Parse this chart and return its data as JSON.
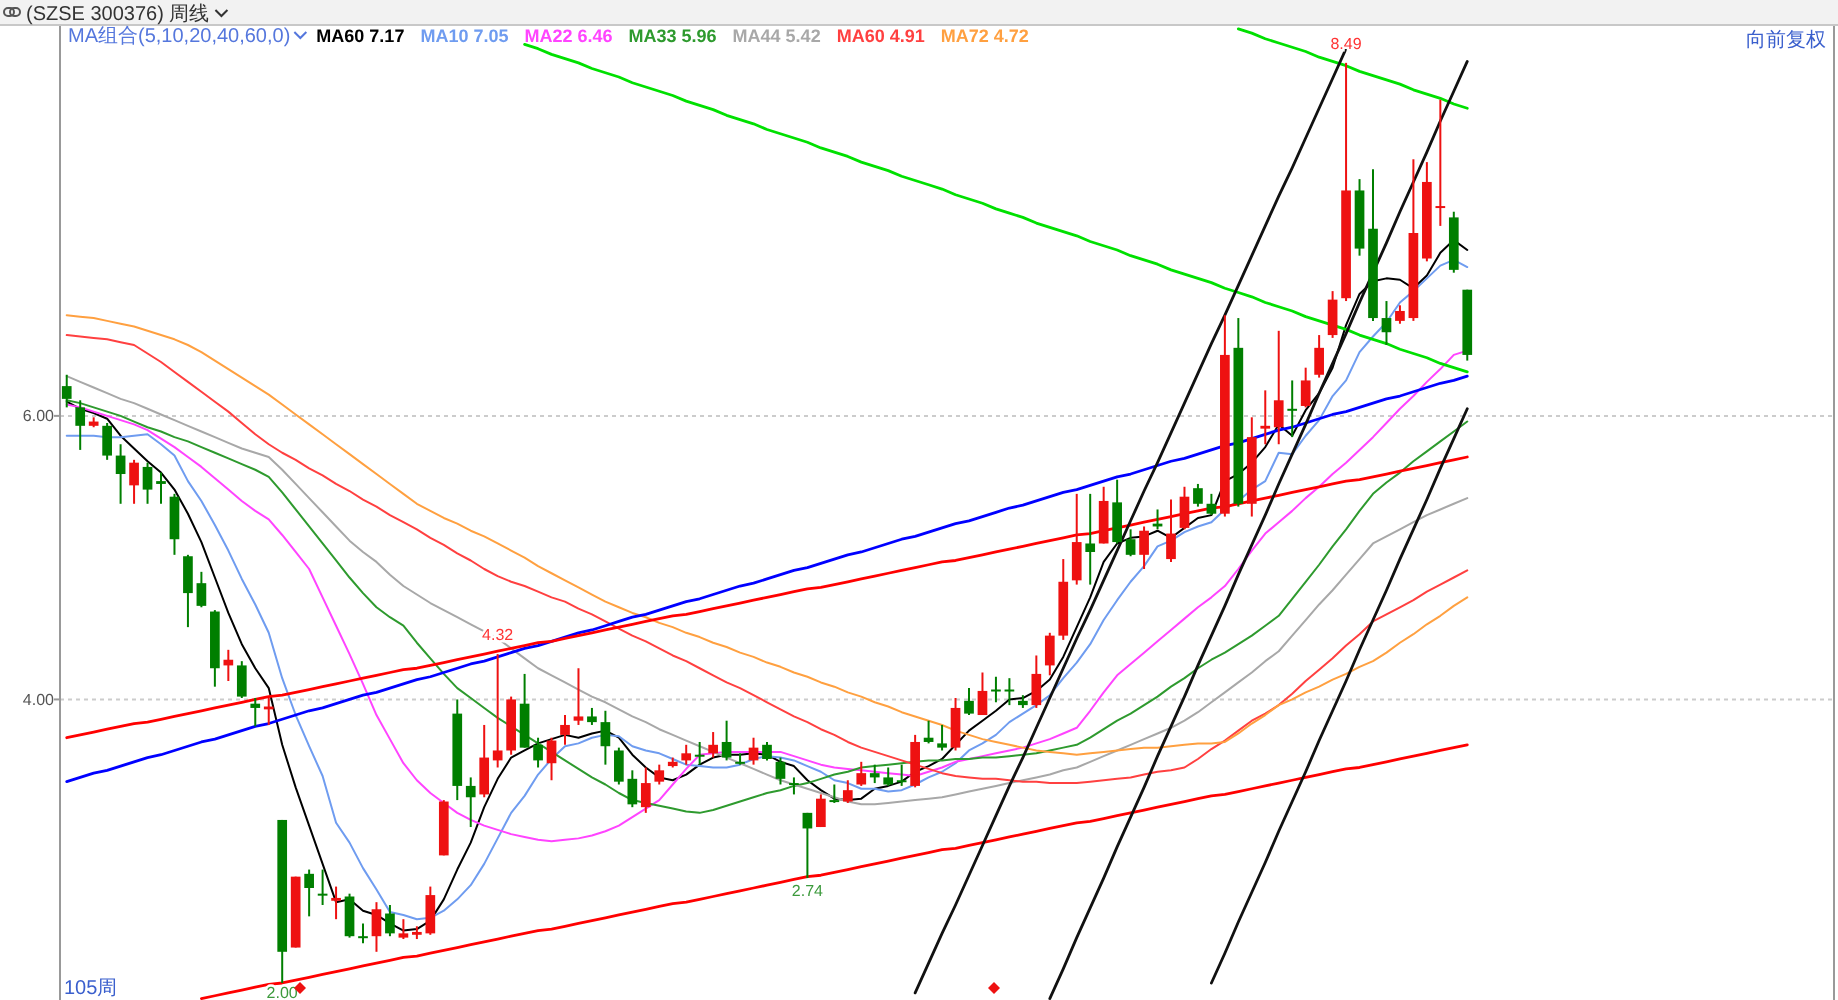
{
  "chart_data": {
    "type": "candlestick",
    "title": "(SZSE 300376) 周线",
    "legend_title": "MA组合(5,10,20,40,60,0)",
    "legend": "top left",
    "grid": "y",
    "tick_labels": "y",
    "ylim": [
      1.88,
      8.75
    ],
    "yticks": [
      {
        "value": 4,
        "label": "4.00"
      },
      {
        "value": 6,
        "label": "6.00"
      }
    ],
    "categories": [
      null,
      null,
      null,
      null,
      null,
      null,
      null,
      null,
      null,
      null,
      null,
      null,
      null,
      null,
      null,
      null,
      null,
      null,
      null,
      null,
      null,
      null,
      null,
      null,
      null,
      null,
      null,
      null,
      null,
      null,
      null,
      null,
      null,
      null,
      null,
      null,
      null,
      null,
      null,
      null,
      null,
      null,
      null,
      null,
      null,
      null,
      null,
      null,
      null,
      null,
      null,
      null,
      null,
      null,
      null,
      null,
      null,
      null,
      null,
      null,
      null,
      null,
      null,
      null,
      null,
      null,
      null,
      null,
      null,
      null,
      null,
      null,
      null,
      null,
      null,
      null,
      null,
      null,
      null,
      null,
      null,
      null,
      null,
      null,
      null,
      null,
      null,
      null,
      null,
      null,
      null,
      null,
      null,
      null,
      null,
      null,
      null,
      null,
      null,
      null,
      null,
      null,
      null,
      null,
      null
    ],
    "ohlc": [
      [
        6.21,
        6.29,
        6.06,
        6.12
      ],
      [
        6.06,
        6.11,
        5.76,
        5.93
      ],
      [
        5.93,
        5.99,
        5.92,
        5.96
      ],
      [
        5.93,
        5.95,
        5.69,
        5.72
      ],
      [
        5.72,
        5.8,
        5.38,
        5.59
      ],
      [
        5.51,
        5.69,
        5.38,
        5.67
      ],
      [
        5.64,
        5.67,
        5.38,
        5.48
      ],
      [
        5.54,
        5.6,
        5.38,
        5.52
      ],
      [
        5.43,
        5.45,
        5.02,
        5.13
      ],
      [
        5.01,
        5.02,
        4.51,
        4.75
      ],
      [
        4.82,
        4.9,
        4.65,
        4.66
      ],
      [
        4.62,
        4.63,
        4.09,
        4.22
      ],
      [
        4.24,
        4.35,
        4.13,
        4.28
      ],
      [
        4.24,
        4.27,
        4.01,
        4.02
      ],
      [
        3.97,
        4.01,
        3.81,
        3.94
      ],
      [
        3.93,
        4.01,
        3.82,
        3.95
      ],
      [
        3.15,
        3.15,
        2.0,
        2.22
      ],
      [
        2.25,
        2.75,
        2.25,
        2.75
      ],
      [
        2.77,
        2.8,
        2.47,
        2.67
      ],
      [
        2.63,
        2.8,
        2.55,
        2.62
      ],
      [
        2.58,
        2.68,
        2.45,
        2.6
      ],
      [
        2.61,
        2.63,
        2.32,
        2.33
      ],
      [
        2.33,
        2.42,
        2.28,
        2.32
      ],
      [
        2.33,
        2.57,
        2.22,
        2.52
      ],
      [
        2.49,
        2.55,
        2.33,
        2.35
      ],
      [
        2.32,
        2.45,
        2.31,
        2.35
      ],
      [
        2.34,
        2.4,
        2.31,
        2.36
      ],
      [
        2.35,
        2.68,
        2.34,
        2.62
      ],
      [
        2.9,
        3.29,
        2.9,
        3.28
      ],
      [
        3.9,
        4.0,
        3.29,
        3.39
      ],
      [
        3.39,
        3.45,
        3.1,
        3.31
      ],
      [
        3.33,
        3.82,
        3.31,
        3.59
      ],
      [
        3.57,
        4.32,
        3.52,
        3.64
      ],
      [
        3.64,
        4.02,
        3.61,
        4.0
      ],
      [
        3.97,
        4.18,
        3.66,
        3.66
      ],
      [
        3.68,
        3.73,
        3.52,
        3.57
      ],
      [
        3.55,
        3.73,
        3.43,
        3.71
      ],
      [
        3.75,
        3.89,
        3.68,
        3.82
      ],
      [
        3.85,
        4.22,
        3.82,
        3.88
      ],
      [
        3.88,
        3.94,
        3.82,
        3.84
      ],
      [
        3.84,
        3.92,
        3.54,
        3.67
      ],
      [
        3.64,
        3.66,
        3.4,
        3.42
      ],
      [
        3.44,
        3.5,
        3.24,
        3.26
      ],
      [
        3.24,
        3.52,
        3.2,
        3.41
      ],
      [
        3.42,
        3.54,
        3.4,
        3.5
      ],
      [
        3.53,
        3.59,
        3.52,
        3.56
      ],
      [
        3.57,
        3.68,
        3.54,
        3.62
      ],
      [
        3.61,
        3.7,
        3.54,
        3.6
      ],
      [
        3.62,
        3.77,
        3.59,
        3.68
      ],
      [
        3.7,
        3.85,
        3.57,
        3.59
      ],
      [
        3.56,
        3.62,
        3.54,
        3.55
      ],
      [
        3.57,
        3.73,
        3.54,
        3.66
      ],
      [
        3.68,
        3.7,
        3.57,
        3.58
      ],
      [
        3.56,
        3.59,
        3.4,
        3.44
      ],
      [
        3.41,
        3.45,
        3.33,
        3.4
      ],
      [
        3.2,
        3.2,
        2.74,
        3.09
      ],
      [
        3.1,
        3.33,
        3.1,
        3.3
      ],
      [
        3.29,
        3.4,
        3.27,
        3.28
      ],
      [
        3.28,
        3.43,
        3.27,
        3.36
      ],
      [
        3.4,
        3.56,
        3.39,
        3.48
      ],
      [
        3.48,
        3.54,
        3.41,
        3.45
      ],
      [
        3.45,
        3.52,
        3.39,
        3.4
      ],
      [
        3.43,
        3.54,
        3.39,
        3.42
      ],
      [
        3.39,
        3.75,
        3.38,
        3.7
      ],
      [
        3.73,
        3.85,
        3.69,
        3.7
      ],
      [
        3.69,
        3.82,
        3.64,
        3.66
      ],
      [
        3.66,
        4.01,
        3.64,
        3.94
      ],
      [
        3.99,
        4.08,
        3.89,
        3.9
      ],
      [
        3.89,
        4.19,
        3.89,
        4.06
      ],
      [
        4.07,
        4.16,
        3.98,
        4.06
      ],
      [
        4.07,
        4.15,
        3.96,
        4.06
      ],
      [
        3.99,
        4.03,
        3.94,
        3.96
      ],
      [
        3.96,
        4.31,
        3.94,
        4.18
      ],
      [
        4.24,
        4.47,
        4.17,
        4.45
      ],
      [
        4.45,
        4.99,
        4.42,
        4.83
      ],
      [
        4.84,
        5.45,
        4.81,
        5.11
      ],
      [
        5.1,
        5.45,
        4.81,
        5.04
      ],
      [
        5.1,
        5.5,
        5.1,
        5.4
      ],
      [
        5.39,
        5.55,
        5.1,
        5.11
      ],
      [
        5.13,
        5.2,
        5.01,
        5.02
      ],
      [
        5.02,
        5.22,
        4.92,
        5.19
      ],
      [
        5.24,
        5.34,
        5.2,
        5.22
      ],
      [
        4.99,
        5.41,
        4.97,
        5.17
      ],
      [
        5.21,
        5.5,
        5.2,
        5.43
      ],
      [
        5.49,
        5.52,
        5.36,
        5.38
      ],
      [
        5.38,
        5.45,
        5.3,
        5.31
      ],
      [
        5.31,
        6.71,
        5.29,
        6.43
      ],
      [
        6.48,
        6.69,
        5.36,
        5.38
      ],
      [
        5.38,
        5.99,
        5.29,
        5.85
      ],
      [
        5.91,
        6.18,
        5.8,
        5.93
      ],
      [
        5.92,
        6.6,
        5.8,
        6.11
      ],
      [
        6.05,
        6.25,
        5.85,
        6.04
      ],
      [
        6.07,
        6.34,
        6.06,
        6.25
      ],
      [
        6.29,
        6.57,
        6.27,
        6.48
      ],
      [
        6.57,
        6.88,
        6.55,
        6.82
      ],
      [
        6.83,
        8.49,
        6.81,
        7.59
      ],
      [
        7.59,
        7.67,
        7.13,
        7.18
      ],
      [
        7.32,
        7.74,
        6.67,
        6.69
      ],
      [
        6.69,
        6.81,
        6.5,
        6.59
      ],
      [
        6.67,
        6.78,
        6.65,
        6.74
      ],
      [
        6.69,
        7.81,
        6.67,
        7.29
      ],
      [
        7.11,
        7.79,
        7.09,
        7.65
      ],
      [
        7.47,
        8.23,
        7.34,
        7.48
      ],
      [
        7.4,
        7.44,
        7.01,
        7.03
      ],
      [
        6.89,
        6.89,
        6.39,
        6.43
      ]
    ],
    "series": [
      {
        "type": "line",
        "name": "MA60 7.17",
        "color": "#000000",
        "values": [
          6.1,
          6.05,
          6.02,
          5.98,
          5.86,
          5.77,
          5.68,
          5.6,
          5.48,
          5.31,
          5.11,
          4.86,
          4.61,
          4.39,
          4.22,
          4.08,
          3.68,
          3.38,
          3.11,
          2.84,
          2.57,
          2.59,
          2.51,
          2.48,
          2.42,
          2.37,
          2.38,
          2.44,
          2.59,
          2.8,
          2.99,
          3.24,
          3.44,
          3.59,
          3.64,
          3.69,
          3.72,
          3.75,
          3.73,
          3.76,
          3.78,
          3.73,
          3.61,
          3.52,
          3.45,
          3.43,
          3.47,
          3.54,
          3.59,
          3.61,
          3.61,
          3.62,
          3.61,
          3.56,
          3.53,
          3.43,
          3.36,
          3.3,
          3.29,
          3.3,
          3.37,
          3.39,
          3.42,
          3.49,
          3.53,
          3.58,
          3.68,
          3.78,
          3.85,
          3.92,
          4.0,
          4.01,
          4.06,
          4.14,
          4.3,
          4.51,
          4.72,
          4.97,
          5.1,
          5.14,
          5.15,
          5.19,
          5.14,
          5.21,
          5.28,
          5.3,
          5.54,
          5.59,
          5.67,
          5.78,
          5.94,
          5.86,
          6.04,
          6.16,
          6.34,
          6.64,
          6.86,
          6.95,
          6.97,
          6.96,
          6.9,
          6.99,
          7.15,
          7.24,
          7.17
        ]
      },
      {
        "type": "line",
        "name": "MA10 7.05",
        "color": "#6f9cf0",
        "values": [
          5.86,
          5.86,
          5.86,
          5.85,
          5.85,
          5.86,
          5.87,
          5.8,
          5.72,
          5.54,
          5.4,
          5.23,
          5.05,
          4.85,
          4.67,
          4.47,
          4.15,
          3.89,
          3.67,
          3.46,
          3.13,
          2.99,
          2.81,
          2.66,
          2.5,
          2.48,
          2.45,
          2.46,
          2.51,
          2.59,
          2.69,
          2.84,
          3.02,
          3.2,
          3.32,
          3.47,
          3.58,
          3.67,
          3.69,
          3.73,
          3.75,
          3.74,
          3.67,
          3.64,
          3.62,
          3.58,
          3.54,
          3.53,
          3.52,
          3.52,
          3.54,
          3.58,
          3.6,
          3.59,
          3.57,
          3.53,
          3.49,
          3.43,
          3.41,
          3.37,
          3.37,
          3.35,
          3.36,
          3.4,
          3.45,
          3.49,
          3.55,
          3.64,
          3.69,
          3.75,
          3.84,
          3.9,
          3.96,
          4.03,
          4.15,
          4.26,
          4.39,
          4.56,
          4.7,
          4.83,
          4.94,
          5.08,
          5.12,
          5.18,
          5.22,
          5.25,
          5.34,
          5.4,
          5.48,
          5.54,
          5.74,
          5.73,
          5.86,
          5.97,
          6.14,
          6.25,
          6.45,
          6.56,
          6.66,
          6.8,
          6.88,
          6.97,
          7.06,
          7.1,
          7.05
        ]
      },
      {
        "type": "line",
        "name": "MA22 6.46",
        "color": "#ff44ff",
        "values": [
          6.08,
          6.06,
          6.03,
          6.0,
          5.97,
          5.94,
          5.9,
          5.84,
          5.78,
          5.71,
          5.64,
          5.56,
          5.48,
          5.4,
          5.33,
          5.27,
          5.16,
          5.04,
          4.92,
          4.72,
          4.52,
          4.32,
          4.11,
          3.89,
          3.72,
          3.55,
          3.43,
          3.34,
          3.27,
          3.2,
          3.15,
          3.11,
          3.08,
          3.05,
          3.03,
          3.01,
          3.0,
          3.01,
          3.02,
          3.04,
          3.07,
          3.11,
          3.17,
          3.23,
          3.29,
          3.4,
          3.51,
          3.61,
          3.62,
          3.63,
          3.63,
          3.63,
          3.63,
          3.63,
          3.6,
          3.57,
          3.54,
          3.52,
          3.51,
          3.5,
          3.49,
          3.48,
          3.47,
          3.46,
          3.49,
          3.52,
          3.56,
          3.58,
          3.6,
          3.62,
          3.64,
          3.66,
          3.69,
          3.72,
          3.76,
          3.8,
          3.92,
          4.05,
          4.17,
          4.25,
          4.33,
          4.41,
          4.49,
          4.57,
          4.65,
          4.72,
          4.8,
          4.92,
          5.05,
          5.17,
          5.25,
          5.33,
          5.42,
          5.5,
          5.59,
          5.67,
          5.76,
          5.85,
          5.95,
          6.05,
          6.14,
          6.24,
          6.33,
          6.43,
          6.46
        ]
      },
      {
        "type": "line",
        "name": "MA33 5.96",
        "color": "#2e9a2e",
        "values": [
          6.11,
          6.09,
          6.06,
          6.03,
          6.0,
          5.96,
          5.92,
          5.89,
          5.85,
          5.82,
          5.78,
          5.74,
          5.7,
          5.66,
          5.62,
          5.57,
          5.46,
          5.34,
          5.22,
          5.1,
          4.98,
          4.86,
          4.75,
          4.65,
          4.58,
          4.52,
          4.4,
          4.29,
          4.18,
          4.08,
          4.01,
          3.94,
          3.87,
          3.81,
          3.75,
          3.69,
          3.63,
          3.57,
          3.51,
          3.45,
          3.4,
          3.34,
          3.29,
          3.27,
          3.25,
          3.23,
          3.21,
          3.2,
          3.22,
          3.25,
          3.28,
          3.31,
          3.34,
          3.36,
          3.39,
          3.41,
          3.44,
          3.47,
          3.49,
          3.52,
          3.53,
          3.54,
          3.55,
          3.56,
          3.57,
          3.57,
          3.58,
          3.58,
          3.59,
          3.59,
          3.6,
          3.61,
          3.62,
          3.64,
          3.66,
          3.68,
          3.73,
          3.79,
          3.85,
          3.9,
          3.96,
          4.02,
          4.09,
          4.15,
          4.22,
          4.28,
          4.33,
          4.39,
          4.45,
          4.52,
          4.59,
          4.71,
          4.83,
          4.95,
          5.08,
          5.2,
          5.33,
          5.45,
          5.53,
          5.6,
          5.68,
          5.75,
          5.82,
          5.89,
          5.96
        ]
      },
      {
        "type": "line",
        "name": "MA44 5.42",
        "color": "#a8a8a8",
        "values": [
          6.28,
          6.24,
          6.2,
          6.16,
          6.12,
          6.09,
          6.05,
          6.01,
          5.97,
          5.93,
          5.89,
          5.85,
          5.81,
          5.77,
          5.74,
          5.71,
          5.62,
          5.52,
          5.42,
          5.32,
          5.22,
          5.12,
          5.04,
          4.97,
          4.88,
          4.8,
          4.74,
          4.68,
          4.63,
          4.58,
          4.53,
          4.48,
          4.43,
          4.36,
          4.29,
          4.22,
          4.17,
          4.12,
          4.07,
          4.02,
          3.98,
          3.93,
          3.88,
          3.84,
          3.79,
          3.75,
          3.71,
          3.67,
          3.63,
          3.59,
          3.55,
          3.51,
          3.47,
          3.43,
          3.4,
          3.37,
          3.34,
          3.31,
          3.28,
          3.26,
          3.26,
          3.27,
          3.28,
          3.29,
          3.3,
          3.31,
          3.33,
          3.35,
          3.37,
          3.39,
          3.41,
          3.43,
          3.45,
          3.47,
          3.5,
          3.52,
          3.56,
          3.6,
          3.64,
          3.68,
          3.72,
          3.76,
          3.8,
          3.85,
          3.91,
          3.98,
          4.05,
          4.12,
          4.19,
          4.27,
          4.34,
          4.45,
          4.56,
          4.67,
          4.77,
          4.88,
          4.99,
          5.1,
          5.15,
          5.2,
          5.25,
          5.3,
          5.34,
          5.38,
          5.42
        ]
      },
      {
        "type": "line",
        "name": "MA60 4.91",
        "color": "#ff4040",
        "values": [
          6.57,
          6.56,
          6.55,
          6.54,
          6.52,
          6.5,
          6.44,
          6.38,
          6.31,
          6.24,
          6.17,
          6.1,
          6.03,
          5.95,
          5.87,
          5.8,
          5.74,
          5.69,
          5.63,
          5.58,
          5.52,
          5.47,
          5.41,
          5.36,
          5.3,
          5.25,
          5.2,
          5.14,
          5.09,
          5.03,
          4.98,
          4.92,
          4.87,
          4.83,
          4.8,
          4.76,
          4.72,
          4.69,
          4.64,
          4.6,
          4.55,
          4.5,
          4.45,
          4.41,
          4.36,
          4.31,
          4.27,
          4.22,
          4.17,
          4.12,
          4.08,
          4.03,
          3.98,
          3.93,
          3.88,
          3.84,
          3.79,
          3.75,
          3.7,
          3.66,
          3.63,
          3.6,
          3.57,
          3.54,
          3.51,
          3.48,
          3.46,
          3.45,
          3.44,
          3.44,
          3.43,
          3.42,
          3.42,
          3.41,
          3.41,
          3.41,
          3.42,
          3.43,
          3.44,
          3.45,
          3.47,
          3.49,
          3.5,
          3.52,
          3.58,
          3.65,
          3.71,
          3.78,
          3.85,
          3.9,
          3.96,
          4.04,
          4.13,
          4.21,
          4.29,
          4.38,
          4.46,
          4.55,
          4.6,
          4.65,
          4.7,
          4.76,
          4.81,
          4.86,
          4.91
        ]
      },
      {
        "type": "line",
        "name": "MA72 4.72",
        "color": "#ffa040",
        "values": [
          6.71,
          6.7,
          6.69,
          6.67,
          6.65,
          6.63,
          6.6,
          6.57,
          6.54,
          6.5,
          6.45,
          6.39,
          6.33,
          6.27,
          6.21,
          6.15,
          6.08,
          6.01,
          5.94,
          5.87,
          5.8,
          5.73,
          5.66,
          5.59,
          5.52,
          5.45,
          5.38,
          5.33,
          5.28,
          5.24,
          5.19,
          5.15,
          5.1,
          5.05,
          5.0,
          4.94,
          4.89,
          4.84,
          4.79,
          4.74,
          4.69,
          4.65,
          4.61,
          4.58,
          4.54,
          4.51,
          4.47,
          4.44,
          4.4,
          4.37,
          4.33,
          4.3,
          4.26,
          4.23,
          4.19,
          4.16,
          4.12,
          4.09,
          4.05,
          4.02,
          3.98,
          3.95,
          3.91,
          3.88,
          3.85,
          3.82,
          3.78,
          3.75,
          3.72,
          3.7,
          3.68,
          3.66,
          3.64,
          3.63,
          3.62,
          3.61,
          3.62,
          3.63,
          3.64,
          3.65,
          3.66,
          3.66,
          3.67,
          3.68,
          3.69,
          3.69,
          3.7,
          3.76,
          3.83,
          3.89,
          3.96,
          4.0,
          4.05,
          4.09,
          4.14,
          4.18,
          4.23,
          4.27,
          4.33,
          4.4,
          4.46,
          4.53,
          4.59,
          4.66,
          4.72
        ]
      },
      {
        "type": "line",
        "color": "#0000ff",
        "values": [
          3.42,
          3.45,
          3.48,
          3.5,
          3.53,
          3.56,
          3.59,
          3.61,
          3.64,
          3.67,
          3.7,
          3.72,
          3.75,
          3.78,
          3.81,
          3.83,
          3.86,
          3.89,
          3.92,
          3.94,
          3.97,
          4.0,
          4.03,
          4.05,
          4.08,
          4.11,
          4.14,
          4.16,
          4.19,
          4.22,
          4.25,
          4.27,
          4.3,
          4.33,
          4.36,
          4.38,
          4.41,
          4.44,
          4.47,
          4.49,
          4.52,
          4.55,
          4.58,
          4.6,
          4.63,
          4.66,
          4.69,
          4.71,
          4.74,
          4.77,
          4.8,
          4.82,
          4.85,
          4.88,
          4.91,
          4.93,
          4.96,
          4.99,
          5.02,
          5.04,
          5.07,
          5.1,
          5.13,
          5.15,
          5.18,
          5.21,
          5.24,
          5.26,
          5.29,
          5.32,
          5.35,
          5.37,
          5.4,
          5.43,
          5.46,
          5.48,
          5.51,
          5.54,
          5.57,
          5.59,
          5.62,
          5.65,
          5.68,
          5.7,
          5.73,
          5.76,
          5.79,
          5.81,
          5.84,
          5.87,
          5.9,
          5.92,
          5.95,
          5.98,
          6.01,
          6.03,
          6.06,
          6.09,
          6.12,
          6.14,
          6.17,
          6.2,
          6.23,
          6.25,
          6.28
        ]
      },
      {
        "type": "line",
        "color": "#ff0000",
        "values": [
          3.73,
          3.75,
          3.77,
          3.79,
          3.81,
          3.83,
          3.84,
          3.86,
          3.88,
          3.9,
          3.92,
          3.94,
          3.96,
          3.98,
          4.0,
          4.02,
          4.03,
          4.05,
          4.07,
          4.09,
          4.11,
          4.13,
          4.15,
          4.17,
          4.19,
          4.21,
          4.22,
          4.24,
          4.26,
          4.28,
          4.3,
          4.32,
          4.34,
          4.36,
          4.38,
          4.4,
          4.41,
          4.43,
          4.45,
          4.47,
          4.49,
          4.51,
          4.53,
          4.55,
          4.57,
          4.59,
          4.6,
          4.62,
          4.64,
          4.66,
          4.68,
          4.7,
          4.72,
          4.74,
          4.76,
          4.78,
          4.79,
          4.81,
          4.83,
          4.85,
          4.87,
          4.89,
          4.91,
          4.93,
          4.95,
          4.97,
          4.98,
          5.0,
          5.02,
          5.04,
          5.06,
          5.08,
          5.1,
          5.12,
          5.14,
          5.16,
          5.17,
          5.19,
          5.21,
          5.23,
          5.25,
          5.27,
          5.29,
          5.31,
          5.33,
          5.35,
          5.36,
          5.38,
          5.4,
          5.42,
          5.44,
          5.46,
          5.48,
          5.5,
          5.52,
          5.54,
          5.55,
          5.57,
          5.59,
          5.61,
          5.63,
          5.65,
          5.67,
          5.69,
          5.71
        ]
      },
      {
        "type": "line",
        "color": "#ff0000",
        "values": [
          null,
          null,
          null,
          null,
          null,
          null,
          null,
          null,
          null,
          null,
          1.89,
          1.91,
          1.93,
          1.95,
          1.97,
          1.99,
          2.0,
          2.02,
          2.04,
          2.06,
          2.08,
          2.1,
          2.12,
          2.14,
          2.16,
          2.18,
          2.19,
          2.21,
          2.23,
          2.25,
          2.27,
          2.29,
          2.31,
          2.33,
          2.35,
          2.37,
          2.38,
          2.4,
          2.42,
          2.44,
          2.46,
          2.48,
          2.5,
          2.52,
          2.54,
          2.56,
          2.57,
          2.59,
          2.61,
          2.63,
          2.65,
          2.67,
          2.69,
          2.71,
          2.73,
          2.75,
          2.76,
          2.78,
          2.8,
          2.82,
          2.84,
          2.86,
          2.88,
          2.9,
          2.92,
          2.94,
          2.95,
          2.97,
          2.99,
          3.01,
          3.03,
          3.05,
          3.07,
          3.09,
          3.11,
          3.13,
          3.14,
          3.16,
          3.18,
          3.2,
          3.22,
          3.24,
          3.26,
          3.28,
          3.3,
          3.32,
          3.33,
          3.35,
          3.37,
          3.39,
          3.41,
          3.43,
          3.45,
          3.47,
          3.49,
          3.51,
          3.52,
          3.54,
          3.56,
          3.58,
          3.6,
          3.62,
          3.64,
          3.66,
          3.68
        ]
      },
      {
        "type": "line",
        "color": "#00e000",
        "values": [
          null,
          null,
          null,
          null,
          null,
          null,
          null,
          null,
          null,
          null,
          null,
          null,
          null,
          null,
          null,
          null,
          null,
          null,
          null,
          null,
          null,
          null,
          null,
          null,
          null,
          null,
          null,
          null,
          null,
          null,
          null,
          null,
          null,
          null,
          null,
          null,
          null,
          null,
          null,
          null,
          null,
          null,
          null,
          null,
          null,
          null,
          null,
          null,
          null,
          null,
          null,
          null,
          null,
          null,
          null,
          null,
          null,
          null,
          null,
          null,
          null,
          null,
          null,
          null,
          null,
          null,
          null,
          null,
          null,
          null,
          null,
          null,
          null,
          null,
          null,
          null,
          null,
          null,
          null,
          null,
          null,
          null,
          null,
          null,
          null,
          null,
          null,
          8.73,
          8.7,
          8.66,
          8.63,
          8.6,
          8.57,
          8.53,
          8.5,
          8.47,
          8.43,
          8.4,
          8.37,
          8.34,
          8.3,
          8.27,
          8.24,
          8.2,
          8.17
        ]
      },
      {
        "type": "line",
        "color": "#00e000",
        "values": [
          null,
          null,
          null,
          null,
          null,
          null,
          null,
          null,
          null,
          null,
          null,
          null,
          null,
          null,
          null,
          null,
          null,
          null,
          null,
          null,
          null,
          null,
          null,
          null,
          null,
          null,
          null,
          null,
          null,
          null,
          null,
          null,
          null,
          null,
          8.62,
          8.59,
          8.55,
          8.52,
          8.49,
          8.45,
          8.42,
          8.39,
          8.35,
          8.32,
          8.29,
          8.26,
          8.22,
          8.19,
          8.16,
          8.12,
          8.09,
          8.06,
          8.02,
          7.99,
          7.96,
          7.93,
          7.89,
          7.86,
          7.83,
          7.79,
          7.76,
          7.73,
          7.69,
          7.66,
          7.63,
          7.6,
          7.56,
          7.53,
          7.5,
          7.46,
          7.43,
          7.4,
          7.36,
          7.33,
          7.3,
          7.27,
          7.23,
          7.2,
          7.17,
          7.13,
          7.1,
          7.07,
          7.03,
          7.0,
          6.97,
          6.94,
          6.9,
          6.87,
          6.84,
          6.8,
          6.77,
          6.74,
          6.7,
          6.67,
          6.64,
          6.61,
          6.57,
          6.54,
          6.51,
          6.47,
          6.44,
          6.41,
          6.37,
          6.34,
          6.31
        ]
      },
      {
        "type": "line",
        "color": "#111111",
        "values": [
          null,
          null,
          null,
          null,
          null,
          null,
          null,
          null,
          null,
          null,
          null,
          null,
          null,
          null,
          null,
          null,
          null,
          null,
          null,
          null,
          null,
          null,
          null,
          null,
          null,
          null,
          null,
          null,
          null,
          null,
          null,
          null,
          null,
          null,
          null,
          null,
          null,
          null,
          null,
          null,
          null,
          null,
          null,
          null,
          null,
          null,
          null,
          null,
          null,
          null,
          null,
          null,
          null,
          null,
          null,
          null,
          null,
          null,
          null,
          null,
          null,
          null,
          null,
          1.93,
          2.14,
          2.35,
          2.55,
          2.76,
          2.97,
          3.18,
          3.39,
          3.59,
          3.8,
          4.01,
          4.22,
          4.43,
          4.63,
          4.84,
          5.05,
          5.26,
          5.47,
          5.67,
          5.88,
          6.09,
          6.3,
          6.51,
          6.71,
          6.92,
          7.13,
          7.34,
          7.55,
          7.75,
          7.96,
          8.17,
          8.38,
          8.59,
          null,
          null,
          null,
          null,
          null,
          null,
          null,
          null,
          null
        ]
      },
      {
        "type": "line",
        "color": "#111111",
        "values": [
          null,
          null,
          null,
          null,
          null,
          null,
          null,
          null,
          null,
          null,
          null,
          null,
          null,
          null,
          null,
          null,
          null,
          null,
          null,
          null,
          null,
          null,
          null,
          null,
          null,
          null,
          null,
          null,
          null,
          null,
          null,
          null,
          null,
          null,
          null,
          null,
          null,
          null,
          null,
          null,
          null,
          null,
          null,
          null,
          null,
          null,
          null,
          null,
          null,
          null,
          null,
          null,
          null,
          null,
          null,
          null,
          null,
          null,
          null,
          null,
          null,
          null,
          null,
          null,
          null,
          null,
          null,
          null,
          null,
          null,
          null,
          null,
          null,
          1.89,
          2.1,
          2.32,
          2.53,
          2.74,
          2.96,
          3.17,
          3.38,
          3.6,
          3.81,
          4.02,
          4.24,
          4.45,
          4.66,
          4.88,
          5.09,
          5.3,
          5.52,
          5.73,
          5.94,
          6.16,
          6.37,
          6.58,
          6.8,
          7.01,
          7.22,
          7.44,
          7.65,
          7.86,
          8.08,
          8.29,
          8.5
        ]
      },
      {
        "type": "line",
        "color": "#111111",
        "values": [
          null,
          null,
          null,
          null,
          null,
          null,
          null,
          null,
          null,
          null,
          null,
          null,
          null,
          null,
          null,
          null,
          null,
          null,
          null,
          null,
          null,
          null,
          null,
          null,
          null,
          null,
          null,
          null,
          null,
          null,
          null,
          null,
          null,
          null,
          null,
          null,
          null,
          null,
          null,
          null,
          null,
          null,
          null,
          null,
          null,
          null,
          null,
          null,
          null,
          null,
          null,
          null,
          null,
          null,
          null,
          null,
          null,
          null,
          null,
          null,
          null,
          null,
          null,
          null,
          null,
          null,
          null,
          null,
          null,
          null,
          null,
          null,
          null,
          null,
          null,
          null,
          null,
          null,
          null,
          null,
          null,
          null,
          null,
          null,
          null,
          2.0,
          2.21,
          2.43,
          2.64,
          2.85,
          3.07,
          3.28,
          3.49,
          3.71,
          3.92,
          4.13,
          4.35,
          4.56,
          4.77,
          4.99,
          5.2,
          5.41,
          5.63,
          5.84,
          6.05
        ]
      }
    ],
    "annotations": [
      "8.49",
      "4.32",
      "2.74",
      "2.00",
      "105周",
      "向前复权"
    ]
  }
}
